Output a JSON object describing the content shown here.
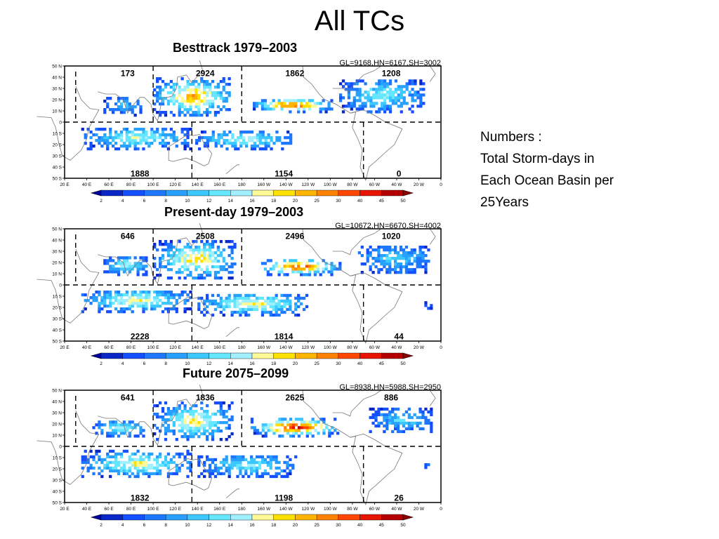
{
  "slide": {
    "title": "All TCs",
    "notes": [
      "Numbers :",
      "Total Storm-days in",
      "Each Ocean Basin per",
      "25Years"
    ]
  },
  "map_axes": {
    "lat_labels": [
      "50 N",
      "40 N",
      "30 N",
      "20 N",
      "10 N",
      "0",
      "10 S",
      "20 S",
      "30 S",
      "40 S",
      "50 S"
    ],
    "lon_labels": [
      "20 E",
      "40 E",
      "60 E",
      "80 E",
      "100 E",
      "120 E",
      "140 E",
      "160 E",
      "180",
      "160 W",
      "140 W",
      "120 W",
      "100 W",
      "80 W",
      "60 W",
      "40 W",
      "20 W",
      "0"
    ],
    "lat_range": [
      -50,
      50
    ],
    "lon_range": [
      20,
      360
    ]
  },
  "colorbar": {
    "labels": [
      "2",
      "4",
      "6",
      "8",
      "10",
      "12",
      "14",
      "16",
      "18",
      "20",
      "25",
      "30",
      "40",
      "45",
      "50"
    ],
    "colors": [
      "#0a28c8",
      "#1450ff",
      "#1e78ff",
      "#28a0ff",
      "#3cc8ff",
      "#64e6ff",
      "#a0f0ff",
      "#fffa96",
      "#ffe100",
      "#ffb400",
      "#ff8200",
      "#ff4600",
      "#e61400",
      "#b40000"
    ],
    "triangle_left": "#0000a0",
    "triangle_right": "#8c0000"
  },
  "panels": [
    {
      "title": "Besttrack 1979–2003",
      "stats": "GL=9168,HN=6167,SH=3002",
      "basins": {
        "nio": "173",
        "wnp": "2924",
        "enp": "1862",
        "atl": "1208",
        "sio": "1888",
        "spo": "1154",
        "sat": "0"
      }
    },
    {
      "title": "Present-day 1979–2003",
      "stats": "GL=10672,HN=6670,SH=4002",
      "basins": {
        "nio": "646",
        "wnp": "2508",
        "enp": "2496",
        "atl": "1020",
        "sio": "2228",
        "spo": "1814",
        "sat": "44"
      }
    },
    {
      "title": "Future 2075–2099",
      "stats": "GL=8938,HN=5988,SH=2950",
      "basins": {
        "nio": "641",
        "wnp": "1836",
        "enp": "2625",
        "atl": "886",
        "sio": "1832",
        "spo": "1198",
        "sat": "26"
      }
    }
  ]
}
